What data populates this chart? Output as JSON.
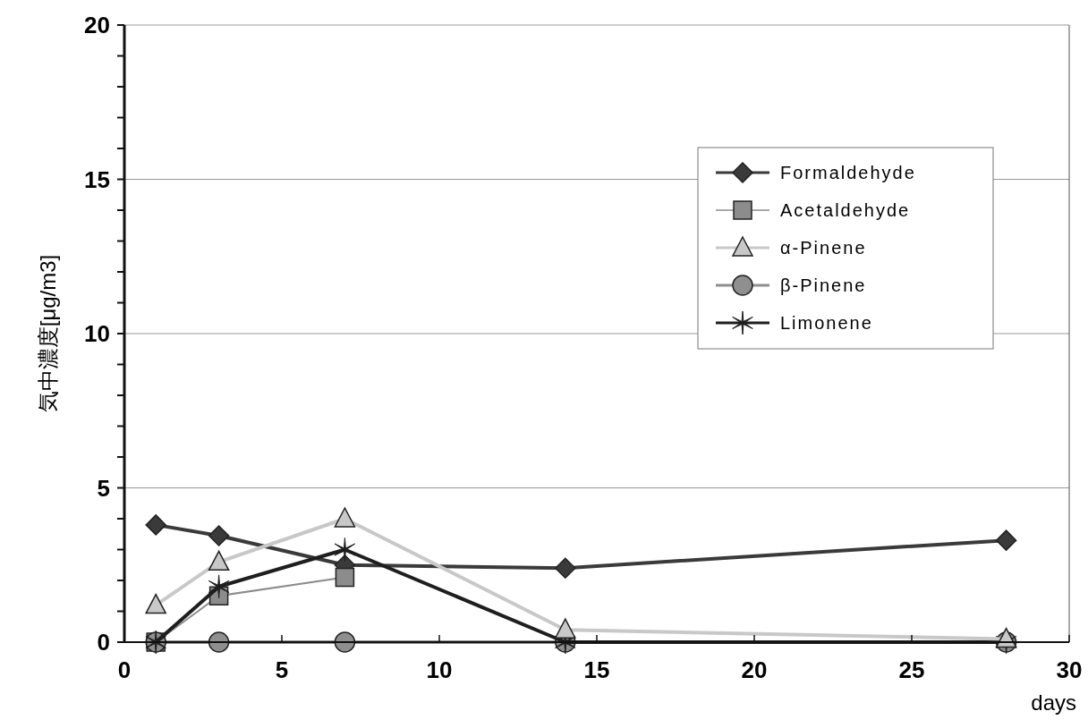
{
  "chart_data": {
    "type": "line",
    "xlabel": "days",
    "ylabel": "気中濃度[μg/m3]",
    "x": [
      1,
      3,
      7,
      14,
      28
    ],
    "series": [
      {
        "name": "Formaldehyde",
        "color": "#3a3a3a",
        "marker": "diamond",
        "values": [
          3.8,
          3.45,
          2.5,
          2.4,
          3.3
        ]
      },
      {
        "name": "Acetaldehyde",
        "color": "#8c8c8c",
        "marker": "square",
        "values": [
          0,
          1.5,
          2.1,
          null,
          null
        ]
      },
      {
        "name": "α-Pinene",
        "color": "#c8c8c8",
        "marker": "triangle",
        "values": [
          1.2,
          2.6,
          4.0,
          0.4,
          0.1
        ]
      },
      {
        "name": "β-Pinene",
        "color": "#8f8f8f",
        "marker": "circle",
        "values": [
          0,
          0,
          0,
          0,
          0
        ]
      },
      {
        "name": "Limonene",
        "color": "#1e1e1e",
        "marker": "cross",
        "values": [
          0,
          1.8,
          3.0,
          0,
          0
        ]
      }
    ],
    "xlim": [
      0,
      30
    ],
    "xticks": [
      0,
      5,
      10,
      15,
      20,
      25,
      30
    ],
    "ylim": [
      0,
      20
    ],
    "yticks": [
      0,
      5,
      10,
      15,
      20
    ],
    "grid": "y",
    "legend": "top right"
  }
}
